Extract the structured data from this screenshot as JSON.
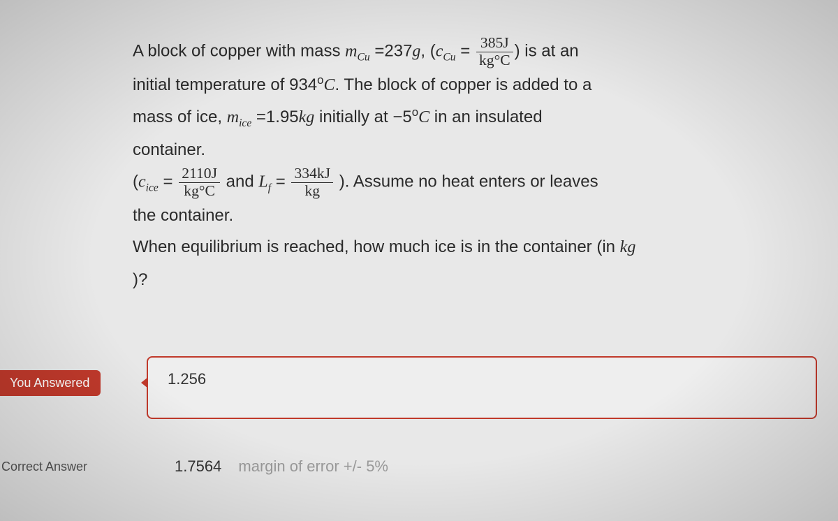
{
  "question": {
    "line1_pre": "A block of copper with mass ",
    "mCu_sym": "m",
    "mCu_sub": "Cu",
    "eq237": " =237",
    "g_unit": "g",
    "open_paren": ", (",
    "cCu_sym": "c",
    "cCu_sub": "Cu",
    "eq_sign": " = ",
    "frac1_num": "385J",
    "frac1_den": "kg°C",
    "close_paren_isat": ") is at an",
    "line2_a": "initial temperature of ",
    "temp1": "934",
    "degC": "C",
    "line2_b": ". The block of copper is added to a",
    "line3_a": "mass of ice, ",
    "mice_sym": "m",
    "mice_sub": "ice",
    "eq195": " =1.95",
    "kg_unit": "kg",
    "line3_b": " initially at ",
    "neg5": "−5",
    "line3_c": " in an insulated",
    "line4": "container.",
    "line5_open": "(",
    "cice_sym": "c",
    "cice_sub": "ice",
    "frac2_num": "2110J",
    "frac2_den": "kg°C",
    "and_txt": " and ",
    "Lf_sym": "L",
    "Lf_sub": "f",
    "frac3_num": "334kJ",
    "frac3_den": "kg",
    "line5_close": " ). Assume no heat enters or leaves",
    "line6": "the container.",
    "line7": "When equilibrium is reached,  how much ice is in the container (in ",
    "kg_italic": "kg",
    "line8": ")?"
  },
  "labels": {
    "you_answered": "You Answered",
    "correct_answer": "Correct Answer"
  },
  "answers": {
    "user_value": "1.256",
    "correct_value": "1.7564",
    "margin_text": "margin of error +/- 5%"
  },
  "colors": {
    "bg": "#e8e8e8",
    "text": "#2a2a2a",
    "wrong": "#c0392b",
    "muted": "#9a9a9a"
  }
}
